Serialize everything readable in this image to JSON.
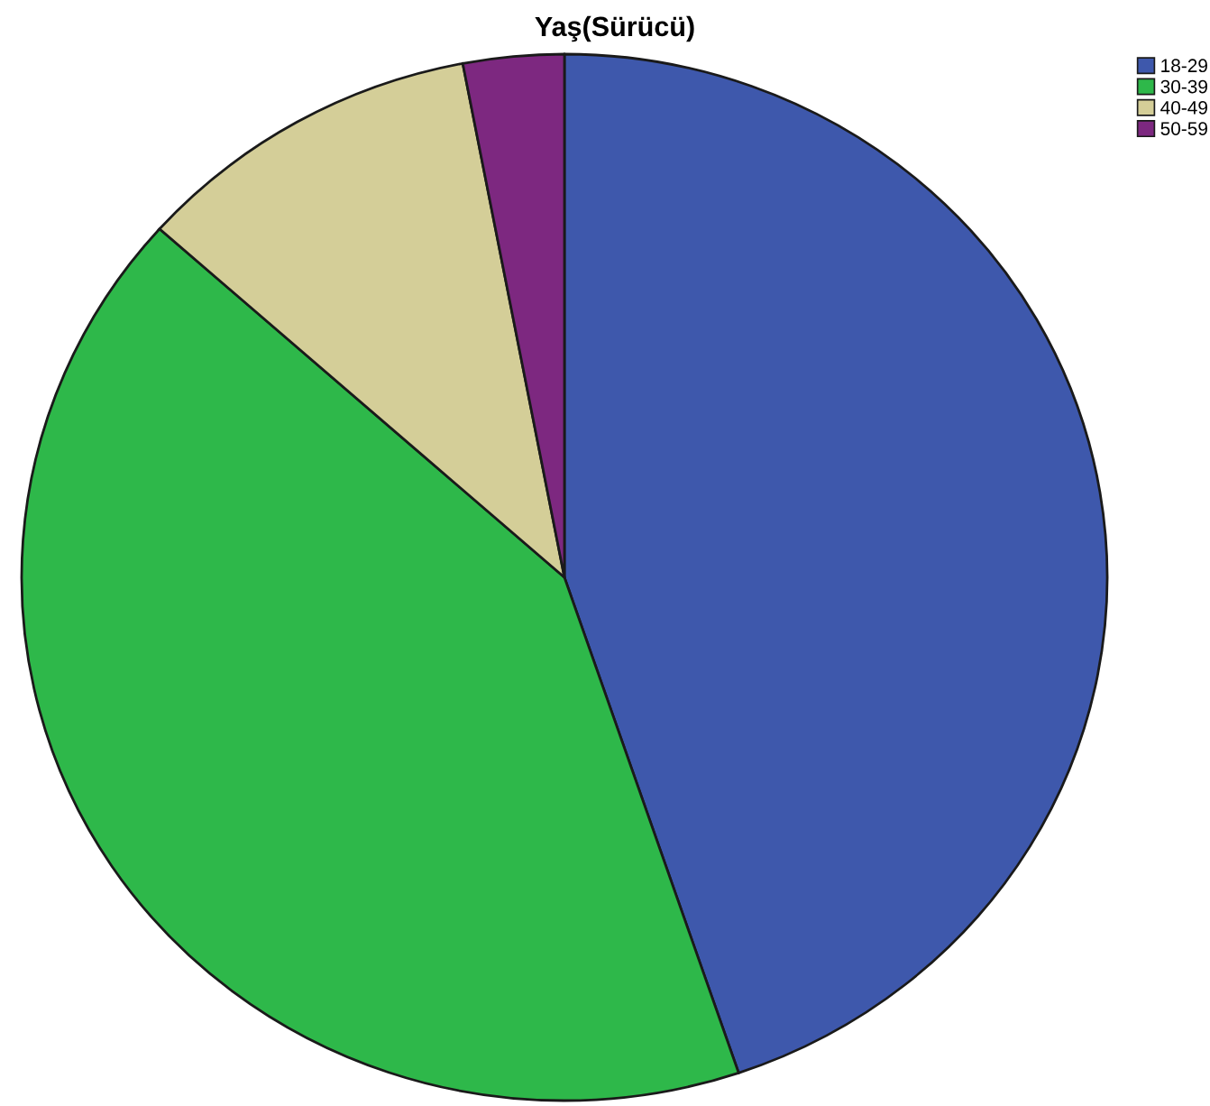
{
  "chart_data": {
    "type": "pie",
    "title": "Yaş(Sürücü)",
    "categories": [
      "18-29",
      "30-39",
      "40-49",
      "50-59"
    ],
    "values": [
      44.8,
      41.8,
      10.4,
      3.0
    ],
    "colors": [
      "#3e58ac",
      "#2eb84a",
      "#d4ce98",
      "#7d2880"
    ],
    "legend": "top right"
  }
}
